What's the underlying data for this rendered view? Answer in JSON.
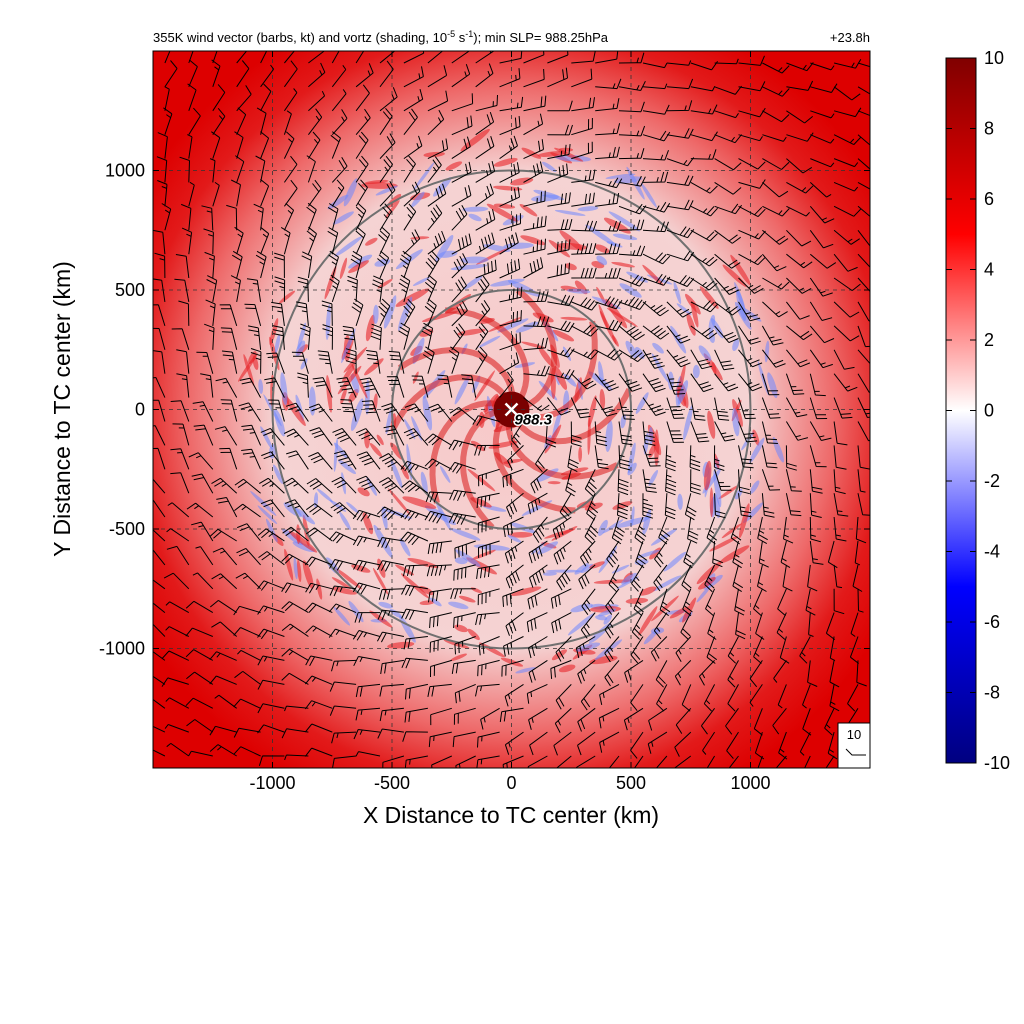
{
  "chart_data": {
    "type": "heatmap",
    "title": "355K wind vector (barbs, kt) and vortz (shading, 10",
    "title_exp": "-5",
    "title_mid": " s",
    "title_exp2": "-1",
    "title_tail": "); min SLP= 988.25hPa",
    "time_label": "+23.8h",
    "xlabel": "X Distance to TC center (km)",
    "ylabel": "Y Distance to TC center (km)",
    "xlim": [
      -1500,
      1500
    ],
    "ylim": [
      -1500,
      1500
    ],
    "x_ticks": [
      -1000,
      -500,
      0,
      500,
      1000
    ],
    "y_ticks": [
      -1000,
      -500,
      0,
      500,
      1000
    ],
    "x_tick_labels": [
      "-1000",
      "-500",
      "0",
      "500",
      "1000"
    ],
    "y_tick_labels": [
      "-1000",
      "-500",
      "0",
      "500",
      "1000"
    ],
    "grid": true,
    "range_rings_km": [
      500,
      1000
    ],
    "center_marker": {
      "x": 0,
      "y": 0,
      "label": "988.3"
    },
    "barb_reference": {
      "label": "10",
      "speed_kt": 10
    },
    "colorbar": {
      "min": -10,
      "max": 10,
      "ticks": [
        10,
        8,
        6,
        4,
        2,
        0,
        -2,
        -4,
        -6,
        -8,
        -10
      ],
      "tick_labels": [
        "10",
        "8",
        "6",
        "4",
        "2",
        "0",
        "-2",
        "-4",
        "-6",
        "-8",
        "-10"
      ],
      "colors": [
        "#000080",
        "#0000ff",
        "#ffffff",
        "#ff0000",
        "#800000"
      ]
    },
    "field_description": {
      "outer_vorticity": 7,
      "inner_vorticity_range": [
        -4,
        6
      ],
      "center_vorticity": 10,
      "inner_region_radius_km": 1200,
      "max_wind_kt": 45
    }
  }
}
